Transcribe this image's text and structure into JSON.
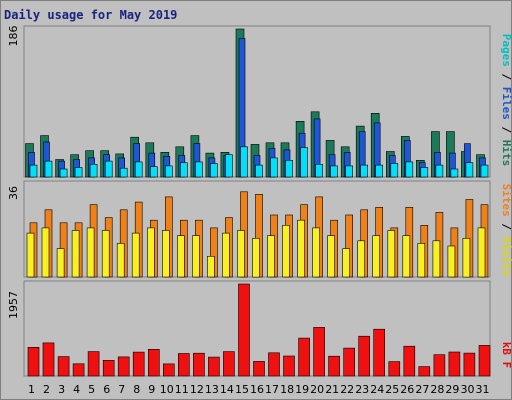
{
  "title": "Daily usage for May 2019",
  "panels": {
    "top": {
      "max_label": "186",
      "legend": [
        {
          "text": "Pages",
          "color": "#00c0c0"
        },
        {
          "text": " / ",
          "color": "#000000"
        },
        {
          "text": "Files",
          "color": "#1e56c8"
        },
        {
          "text": " / ",
          "color": "#000000"
        },
        {
          "text": "Hits",
          "color": "#1f7a5a"
        }
      ]
    },
    "middle": {
      "max_label": "36",
      "legend": [
        {
          "text": "Sites",
          "color": "#f08020"
        },
        {
          "text": " / ",
          "color": "#000000"
        },
        {
          "text": "Visits",
          "color": "#d8d800"
        }
      ]
    },
    "bottom": {
      "max_label": "1957",
      "legend": [
        {
          "text": "kB F",
          "color": "#e01010"
        }
      ]
    }
  },
  "chart_data": {
    "type": "bar",
    "title": "Daily usage for May 2019",
    "categories": [
      "1",
      "2",
      "3",
      "4",
      "5",
      "6",
      "7",
      "8",
      "9",
      "10",
      "11",
      "12",
      "13",
      "14",
      "15",
      "16",
      "17",
      "18",
      "19",
      "20",
      "21",
      "22",
      "23",
      "24",
      "25",
      "26",
      "27",
      "28",
      "29",
      "30",
      "31"
    ],
    "weekend_categories": [
      "4",
      "5",
      "11",
      "12",
      "18",
      "19",
      "25",
      "26"
    ],
    "colors": {
      "hits": "#1a7a5a",
      "files": "#1e56d8",
      "pages": "#00e0f8",
      "sites": "#f08018",
      "visits": "#f8f020",
      "kbytes": "#f01010",
      "weekday_label": "#000000",
      "weekend_label": "#1a7a5a"
    },
    "panels": [
      {
        "id": "top",
        "ylim": [
          0,
          186
        ],
        "series": [
          {
            "name": "Hits",
            "values": [
              42,
              52,
              22,
              28,
              33,
              33,
              29,
              50,
              43,
              31,
              38,
              52,
              30,
              31,
              186,
              41,
              43,
              43,
              70,
              82,
              46,
              38,
              64,
              80,
              32,
              51,
              21,
              57,
              57,
              32,
              28
            ]
          },
          {
            "name": "Files",
            "values": [
              31,
              44,
              20,
              22,
              24,
              28,
              24,
              42,
              30,
              26,
              27,
              42,
              24,
              27,
              174,
              27,
              36,
              34,
              55,
              73,
              28,
              31,
              57,
              68,
              27,
              46,
              18,
              31,
              30,
              42,
              24
            ]
          },
          {
            "name": "Pages",
            "values": [
              15,
              20,
              10,
              12,
              16,
              20,
              11,
              19,
              13,
              14,
              18,
              19,
              17,
              28,
              38,
              15,
              24,
              21,
              37,
              16,
              14,
              14,
              15,
              15,
              17,
              19,
              12,
              15,
              10,
              18,
              15
            ]
          }
        ]
      },
      {
        "id": "middle",
        "ylim": [
          0,
          36
        ],
        "series": [
          {
            "name": "Sites",
            "values": [
              21,
              26,
              21,
              21,
              28,
              23,
              26,
              29,
              22,
              31,
              22,
              22,
              19,
              23,
              33,
              32,
              24,
              24,
              28,
              31,
              22,
              24,
              26,
              27,
              19,
              27,
              20,
              25,
              19,
              30,
              28
            ]
          },
          {
            "name": "Visits",
            "values": [
              17,
              19,
              11,
              18,
              19,
              18,
              13,
              17,
              19,
              18,
              16,
              16,
              8,
              17,
              18,
              15,
              16,
              20,
              22,
              19,
              16,
              11,
              14,
              16,
              18,
              16,
              13,
              14,
              12,
              15,
              19
            ]
          }
        ]
      },
      {
        "id": "bottom",
        "ylim": [
          0,
          1957
        ],
        "series": [
          {
            "name": "KBytes",
            "values": [
              610,
              704,
              413,
              259,
              520,
              334,
              406,
              508,
              568,
              257,
              478,
              486,
              402,
              519,
              1957,
              310,
              493,
              426,
              806,
              1034,
              421,
              593,
              846,
              996,
              306,
              634,
              199,
              454,
              511,
              488,
              650
            ]
          }
        ]
      }
    ]
  }
}
